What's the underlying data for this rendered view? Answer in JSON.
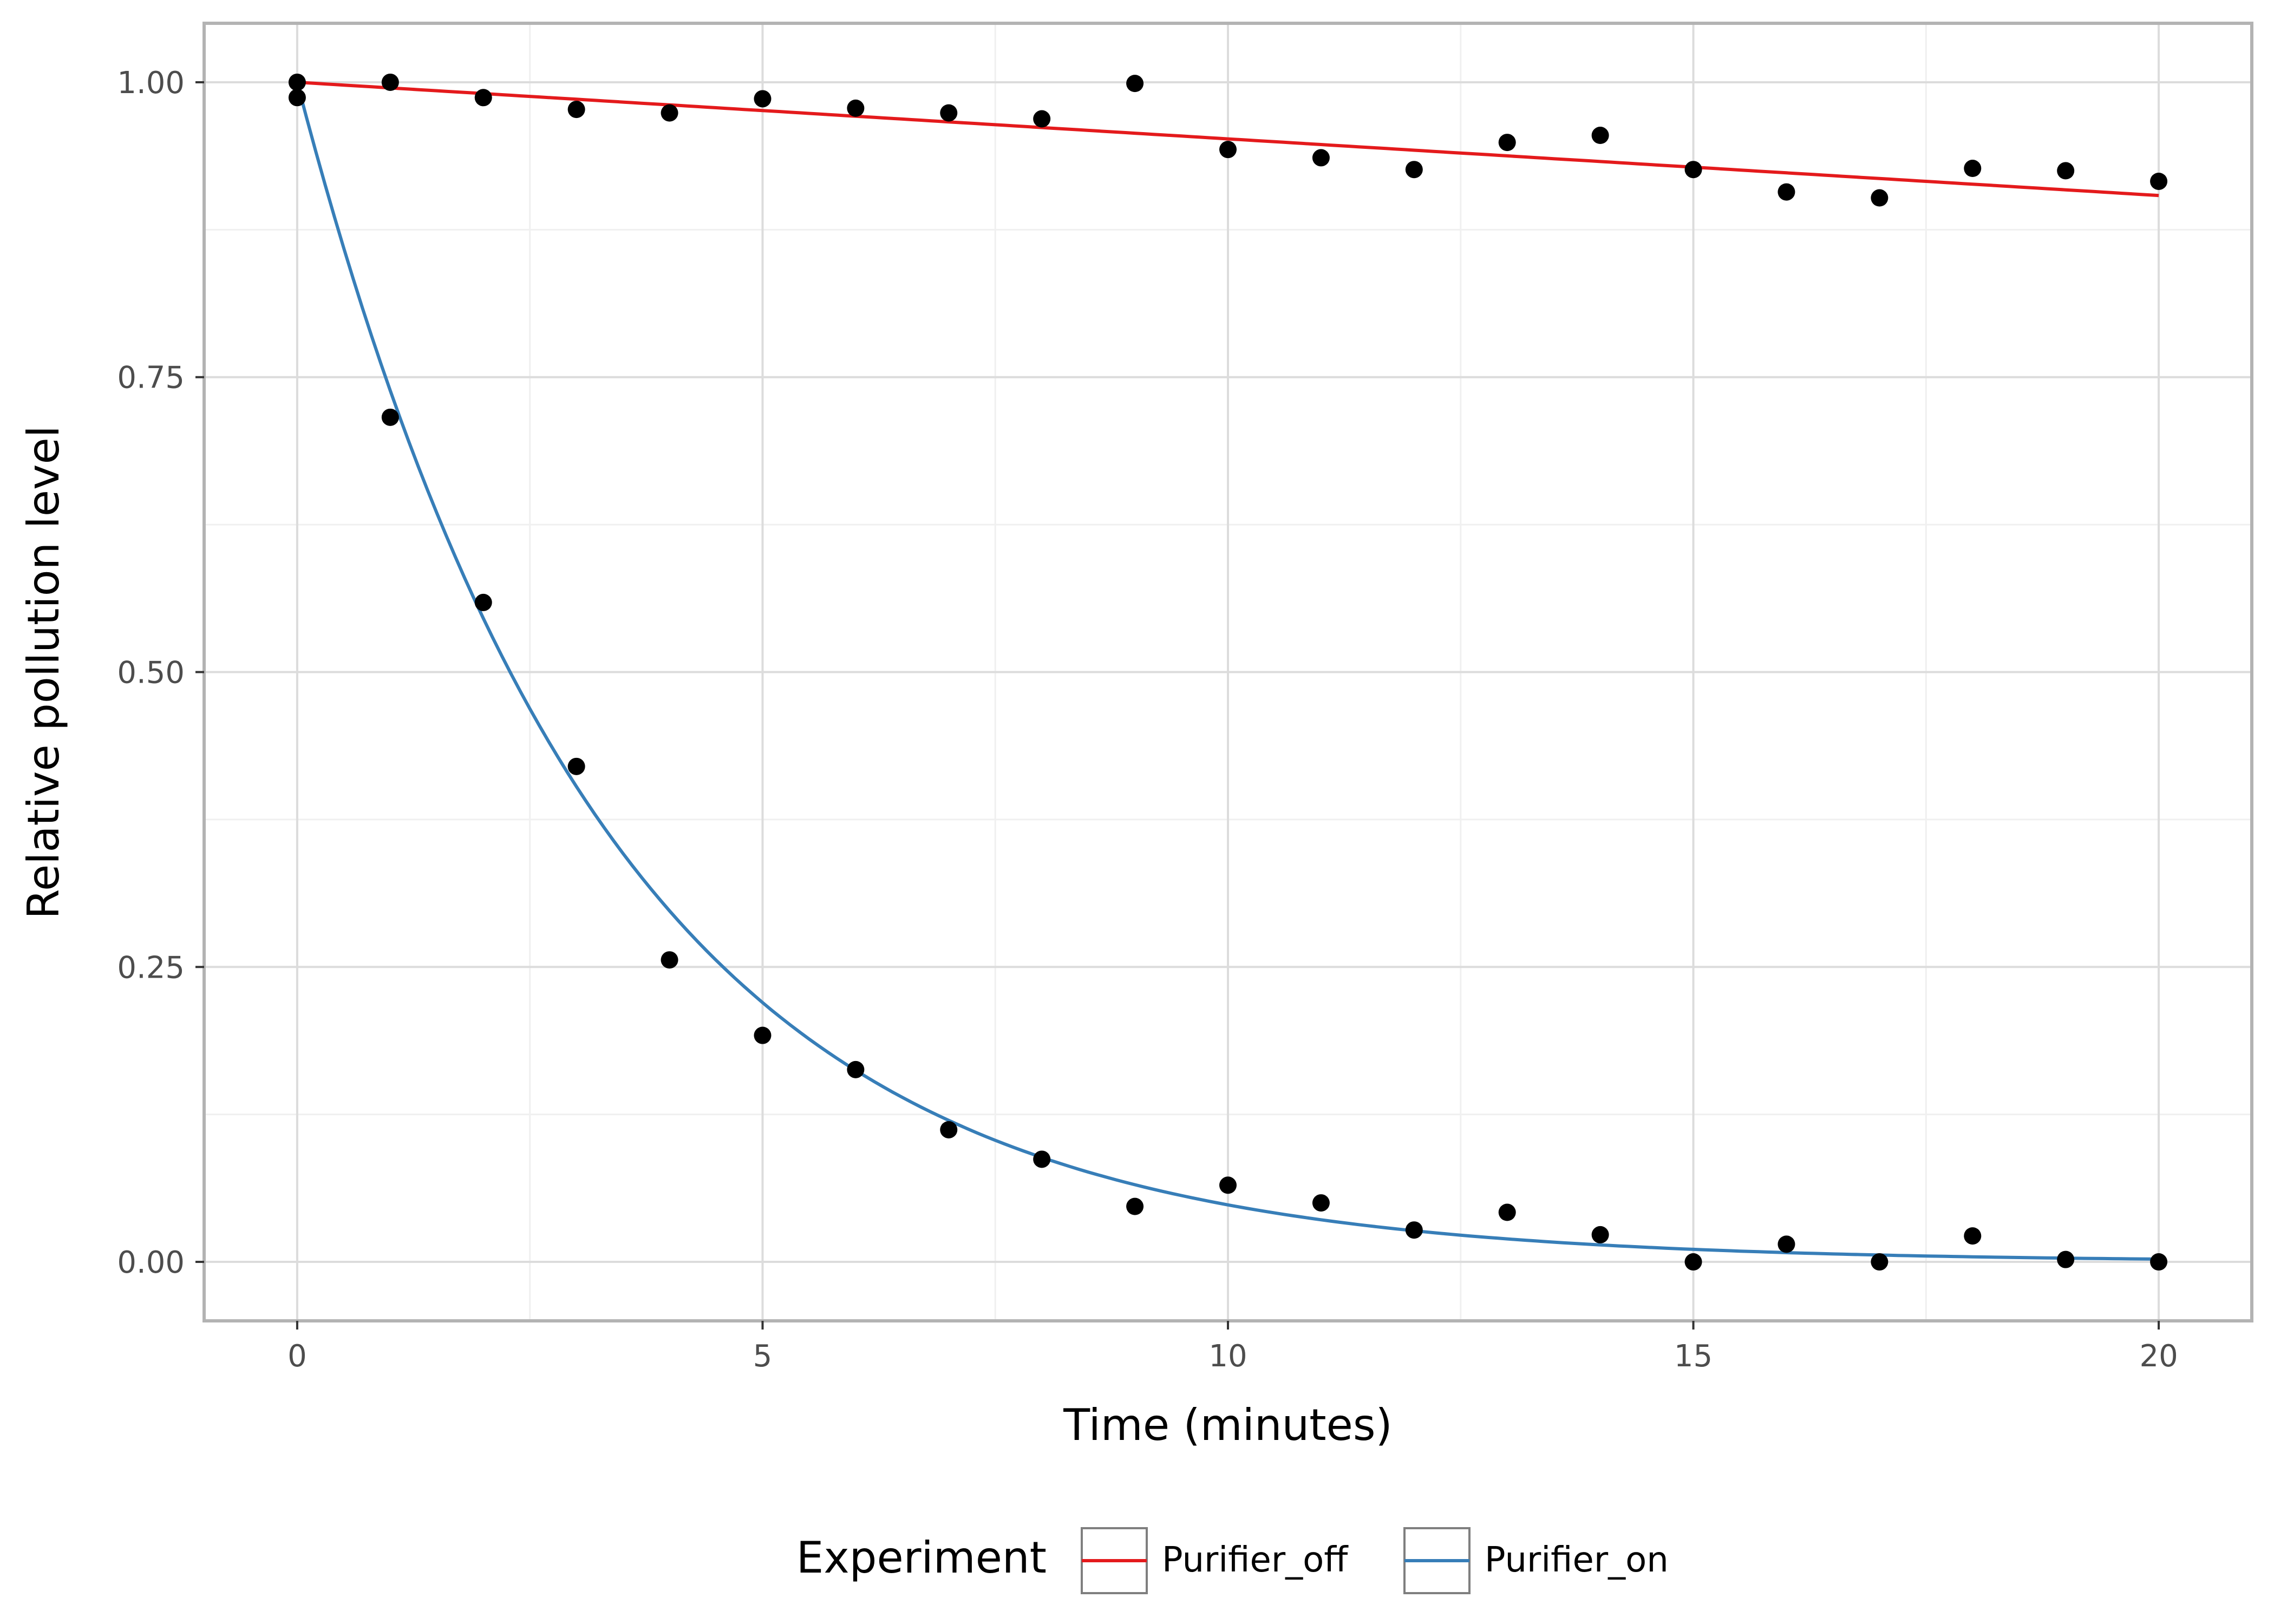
{
  "chart_data": {
    "type": "scatter",
    "xlabel": "Time (minutes)",
    "ylabel": "Relative pollution level",
    "xlim": [
      -1,
      21
    ],
    "ylim": [
      -0.05,
      1.05
    ],
    "x_ticks": [
      0,
      5,
      10,
      15,
      20
    ],
    "y_ticks": [
      0.0,
      0.25,
      0.5,
      0.75,
      1.0
    ],
    "x_tick_labels": [
      "0",
      "5",
      "10",
      "15",
      "20"
    ],
    "y_tick_labels": [
      "0.00",
      "0.25",
      "0.50",
      "0.75",
      "1.00"
    ],
    "grid": true,
    "legend": {
      "title": "Experiment",
      "placement": "bottom",
      "entries": [
        {
          "label": "Purifier_off",
          "color": "#e41a1c"
        },
        {
          "label": "Purifier_on",
          "color": "#377eb8"
        }
      ]
    },
    "series": [
      {
        "name": "Purifier_off",
        "color": "#e41a1c",
        "fit": {
          "model": "linear",
          "y0": 1.0,
          "slope": -0.0048
        },
        "points": [
          [
            0,
            1.0
          ],
          [
            1,
            1.0
          ],
          [
            2,
            0.987
          ],
          [
            3,
            0.977
          ],
          [
            4,
            0.974
          ],
          [
            5,
            0.986
          ],
          [
            6,
            0.978
          ],
          [
            7,
            0.974
          ],
          [
            8,
            0.969
          ],
          [
            9,
            0.999
          ],
          [
            10,
            0.943
          ],
          [
            11,
            0.936
          ],
          [
            12,
            0.926
          ],
          [
            13,
            0.949
          ],
          [
            14,
            0.955
          ],
          [
            15,
            0.926
          ],
          [
            16,
            0.907
          ],
          [
            17,
            0.902
          ],
          [
            18,
            0.927
          ],
          [
            19,
            0.925
          ],
          [
            20,
            0.916
          ]
        ]
      },
      {
        "name": "Purifier_on",
        "color": "#377eb8",
        "fit": {
          "model": "exponential",
          "y0": 1.0,
          "rate": 0.303
        },
        "points": [
          [
            0,
            0.987
          ],
          [
            1,
            0.716
          ],
          [
            2,
            0.559
          ],
          [
            3,
            0.42
          ],
          [
            4,
            0.256
          ],
          [
            5,
            0.192
          ],
          [
            6,
            0.163
          ],
          [
            7,
            0.112
          ],
          [
            8,
            0.087
          ],
          [
            9,
            0.047
          ],
          [
            10,
            0.065
          ],
          [
            11,
            0.05
          ],
          [
            12,
            0.027
          ],
          [
            13,
            0.042
          ],
          [
            14,
            0.023
          ],
          [
            15,
            0.0
          ],
          [
            16,
            0.015
          ],
          [
            17,
            0.0
          ],
          [
            18,
            0.022
          ],
          [
            19,
            0.002
          ],
          [
            20,
            0.0
          ]
        ]
      }
    ],
    "point_color": "#000000"
  }
}
